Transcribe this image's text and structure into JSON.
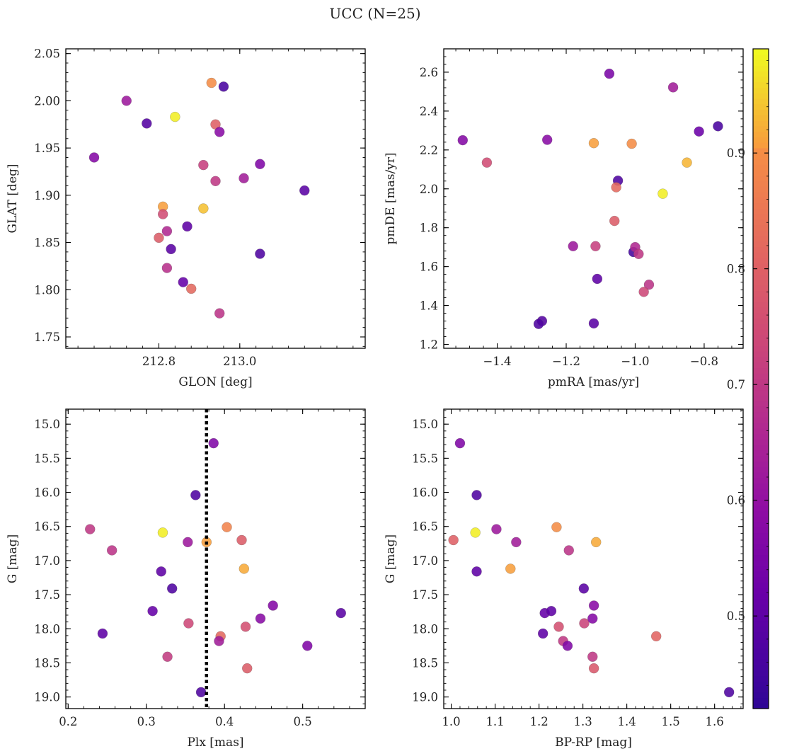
{
  "title": "UCC (N=25)",
  "colormap": "plasma",
  "colorbar": {
    "range": [
      0.42,
      0.99
    ],
    "ticks": [
      0.5,
      0.6,
      0.7,
      0.8,
      0.9
    ],
    "tick_labels": [
      "0.5",
      "0.6",
      "0.7",
      "0.8",
      "0.9"
    ]
  },
  "chart_data": [
    {
      "type": "scatter",
      "xlabel": "GLON [deg]",
      "ylabel": "GLAT [deg]",
      "xlim": [
        212.57,
        213.31
      ],
      "ylim": [
        1.738,
        2.055
      ],
      "xticks": [
        212.8,
        213.0
      ],
      "xtick_labels": [
        "212.8",
        "213.0"
      ],
      "yticks": [
        1.75,
        1.8,
        1.85,
        1.9,
        1.95,
        2.0,
        2.05
      ],
      "ytick_labels": [
        "1.75",
        "1.80",
        "1.85",
        "1.90",
        "1.95",
        "2.00",
        "2.05"
      ],
      "x": [
        212.64,
        212.72,
        212.77,
        212.84,
        212.81,
        212.93,
        212.87,
        212.96,
        212.91,
        212.94,
        212.95,
        212.94,
        213.01,
        213.05,
        213.05,
        213.16,
        212.81,
        212.82,
        212.83,
        212.82,
        212.86,
        212.91,
        212.8,
        212.88,
        212.95
      ],
      "y": [
        1.94,
        2.0,
        1.976,
        1.983,
        1.888,
        2.019,
        1.867,
        2.015,
        1.932,
        1.975,
        1.967,
        1.915,
        1.918,
        1.933,
        1.838,
        1.905,
        1.88,
        1.862,
        1.843,
        1.823,
        1.808,
        1.886,
        1.855,
        1.801,
        1.775
      ],
      "c": [
        0.57,
        0.62,
        0.48,
        0.98,
        0.91,
        0.9,
        0.5,
        0.46,
        0.72,
        0.8,
        0.58,
        0.7,
        0.63,
        0.56,
        0.47,
        0.49,
        0.75,
        0.66,
        0.49,
        0.68,
        0.51,
        0.94,
        0.79,
        0.82,
        0.69
      ]
    },
    {
      "type": "scatter",
      "xlabel": "pmRA [mas/yr]",
      "ylabel": "pmDE [mas/yr]",
      "xlim": [
        -1.555,
        -0.687
      ],
      "ylim": [
        1.18,
        2.72
      ],
      "xticks": [
        -1.4,
        -1.2,
        -1.0,
        -0.8
      ],
      "xtick_labels": [
        "−1.4",
        "−1.2",
        "−1.0",
        "−0.8"
      ],
      "yticks": [
        1.2,
        1.4,
        1.6,
        1.8,
        2.0,
        2.2,
        2.4,
        2.6
      ],
      "ytick_labels": [
        "1.2",
        "1.4",
        "1.6",
        "1.8",
        "2.0",
        "2.2",
        "2.4",
        "2.6"
      ],
      "x": [
        -1.5,
        -1.43,
        -1.255,
        -1.12,
        -1.01,
        -0.85,
        -0.76,
        -0.815,
        -0.89,
        -1.075,
        -1.05,
        -1.055,
        -0.92,
        -1.06,
        -1.18,
        -1.115,
        -1.005,
        -1.0,
        -0.99,
        -1.11,
        -0.96,
        -0.975,
        -1.27,
        -1.28,
        -1.12
      ],
      "y": [
        2.25,
        2.135,
        2.252,
        2.235,
        2.232,
        2.135,
        2.322,
        2.295,
        2.522,
        2.592,
        2.042,
        2.008,
        1.975,
        1.835,
        1.705,
        1.705,
        1.675,
        1.7,
        1.665,
        1.537,
        1.507,
        1.47,
        1.32,
        1.305,
        1.308
      ],
      "c": [
        0.57,
        0.75,
        0.58,
        0.91,
        0.9,
        0.93,
        0.46,
        0.52,
        0.63,
        0.55,
        0.47,
        0.82,
        0.98,
        0.79,
        0.62,
        0.72,
        0.45,
        0.66,
        0.7,
        0.5,
        0.69,
        0.74,
        0.48,
        0.47,
        0.49
      ]
    },
    {
      "type": "scatter",
      "xlabel": "Plx [mas]",
      "ylabel": "G [mag]",
      "xlim": [
        0.197,
        0.58
      ],
      "ylim": [
        19.17,
        14.78
      ],
      "xticks": [
        0.2,
        0.3,
        0.4,
        0.5
      ],
      "xtick_labels": [
        "0.2",
        "0.3",
        "0.4",
        "0.5"
      ],
      "yticks": [
        15.0,
        15.5,
        16.0,
        16.5,
        17.0,
        17.5,
        18.0,
        18.5,
        19.0
      ],
      "ytick_labels": [
        "15.0",
        "15.5",
        "16.0",
        "16.5",
        "17.0",
        "17.5",
        "18.0",
        "18.5",
        "19.0"
      ],
      "vline": 0.377,
      "x": [
        0.386,
        0.363,
        0.228,
        0.321,
        0.403,
        0.422,
        0.256,
        0.353,
        0.377,
        0.425,
        0.319,
        0.333,
        0.308,
        0.244,
        0.354,
        0.395,
        0.427,
        0.446,
        0.462,
        0.549,
        0.393,
        0.506,
        0.327,
        0.429,
        0.37
      ],
      "y": [
        15.28,
        16.04,
        16.54,
        16.59,
        16.51,
        16.7,
        16.85,
        16.73,
        16.73,
        17.12,
        17.16,
        17.41,
        17.74,
        18.07,
        17.92,
        18.11,
        17.97,
        17.85,
        17.66,
        17.77,
        18.18,
        18.25,
        18.41,
        18.58,
        18.93
      ],
      "c": [
        0.56,
        0.47,
        0.7,
        0.98,
        0.88,
        0.79,
        0.69,
        0.62,
        0.91,
        0.92,
        0.5,
        0.47,
        0.51,
        0.5,
        0.74,
        0.82,
        0.76,
        0.58,
        0.57,
        0.49,
        0.63,
        0.56,
        0.71,
        0.79,
        0.47
      ]
    },
    {
      "type": "scatter",
      "xlabel": "BP-RP [mag]",
      "ylabel": "G [mag]",
      "xlim": [
        0.983,
        1.665
      ],
      "ylim": [
        19.17,
        14.78
      ],
      "xticks": [
        1.0,
        1.1,
        1.2,
        1.3,
        1.4,
        1.5,
        1.6
      ],
      "xtick_labels": [
        "1.0",
        "1.1",
        "1.2",
        "1.3",
        "1.4",
        "1.5",
        "1.6"
      ],
      "yticks": [
        15.0,
        15.5,
        16.0,
        16.5,
        17.0,
        17.5,
        18.0,
        18.5,
        19.0
      ],
      "ytick_labels": [
        "15.0",
        "15.5",
        "16.0",
        "16.5",
        "17.0",
        "17.5",
        "18.0",
        "18.5",
        "19.0"
      ],
      "x": [
        1.02,
        1.058,
        1.005,
        1.055,
        1.103,
        1.24,
        1.33,
        1.148,
        1.268,
        1.135,
        1.058,
        1.302,
        1.213,
        1.228,
        1.209,
        1.245,
        1.303,
        1.322,
        1.325,
        1.467,
        1.255,
        1.265,
        1.322,
        1.325,
        1.633
      ],
      "y": [
        15.28,
        16.04,
        16.7,
        16.59,
        16.54,
        16.51,
        16.73,
        16.73,
        16.85,
        17.12,
        17.16,
        17.41,
        17.77,
        17.74,
        18.07,
        17.97,
        17.92,
        17.85,
        17.66,
        18.11,
        18.18,
        18.25,
        18.41,
        18.58,
        18.93
      ],
      "c": [
        0.56,
        0.47,
        0.8,
        0.98,
        0.62,
        0.9,
        0.92,
        0.63,
        0.69,
        0.91,
        0.5,
        0.49,
        0.51,
        0.5,
        0.5,
        0.76,
        0.73,
        0.57,
        0.58,
        0.81,
        0.7,
        0.56,
        0.7,
        0.78,
        0.47
      ]
    }
  ]
}
